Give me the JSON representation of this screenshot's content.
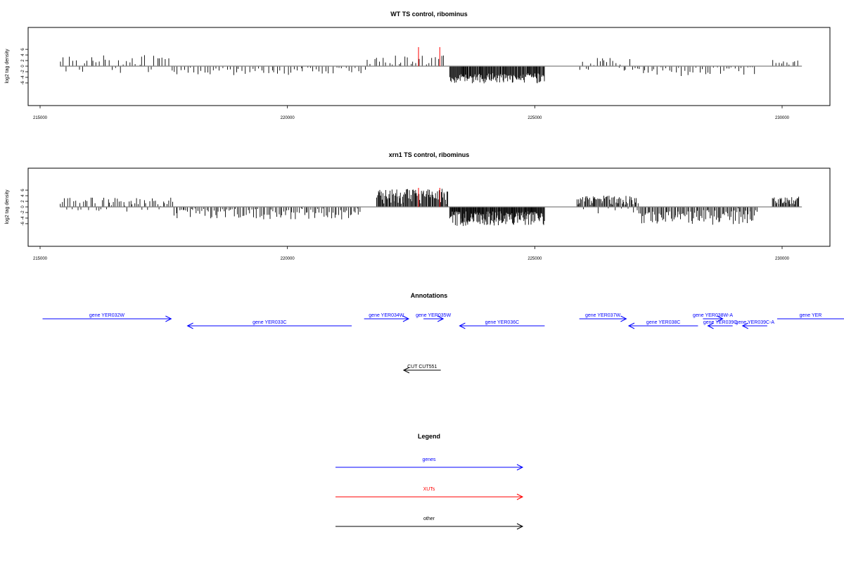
{
  "colors": {
    "gene": "#0000ff",
    "xut": "#ff0000",
    "other": "#000000",
    "baseline": "#808080"
  },
  "chart_data": [
    {
      "type": "bar",
      "title": "WT TS control, ribominus",
      "ylabel": "log2 tag density",
      "xlim": [
        214700,
        230800
      ],
      "ylim": [
        -7,
        7
      ],
      "xticks": [
        {
          "v": 215000,
          "label": "215000"
        },
        {
          "v": 220000,
          "label": "220000"
        },
        {
          "v": 225000,
          "label": "225000"
        },
        {
          "v": 230000,
          "label": "230000"
        }
      ],
      "yticks": [
        {
          "v": 6,
          "label": "6"
        },
        {
          "v": 4,
          "label": "4"
        },
        {
          "v": 2,
          "label": "2"
        },
        {
          "v": 0,
          "label": "0"
        },
        {
          "v": -2,
          "label": "-2"
        },
        {
          "v": -4,
          "label": "-4"
        },
        {
          "v": -6,
          "label": "-6"
        }
      ],
      "baseline_x": [
        215400,
        230400
      ],
      "highlights": [
        {
          "x": 222650,
          "y": 6.8
        },
        {
          "x": 223080,
          "y": 6.8
        }
      ],
      "series": [
        {
          "segments": [
            {
              "x0": 215400,
              "x1": 217700,
              "n": 38,
              "lo": 0.3,
              "hi": 4.0,
              "neg": 0.2,
              "seed": 11
            },
            {
              "x0": 217700,
              "x1": 221600,
              "n": 60,
              "lo": -3.4,
              "hi": -0.4,
              "neg": 0.0,
              "seed": 12
            },
            {
              "x0": 221600,
              "x1": 223200,
              "n": 26,
              "lo": 0.5,
              "hi": 3.8,
              "neg": 0.05,
              "seed": 13
            },
            {
              "x0": 223280,
              "x1": 225200,
              "n": 140,
              "lo": -6.2,
              "hi": -2.5,
              "neg": 0.0,
              "seed": 14
            },
            {
              "x0": 225900,
              "x1": 227100,
              "n": 22,
              "lo": 0.3,
              "hi": 3.0,
              "neg": 0.25,
              "seed": 15
            },
            {
              "x0": 227100,
              "x1": 229500,
              "n": 40,
              "lo": -3.6,
              "hi": -0.3,
              "neg": 0.0,
              "seed": 16
            },
            {
              "x0": 229800,
              "x1": 230350,
              "n": 10,
              "lo": 0.3,
              "hi": 2.5,
              "neg": 0.0,
              "seed": 17
            }
          ]
        }
      ]
    },
    {
      "type": "bar",
      "title": "xrn1 TS control, ribominus",
      "ylabel": "log2 tag density",
      "xlim": [
        214700,
        230800
      ],
      "ylim": [
        -7,
        7
      ],
      "xticks": [
        {
          "v": 215000,
          "label": "215000"
        },
        {
          "v": 220000,
          "label": "220000"
        },
        {
          "v": 225000,
          "label": "225000"
        },
        {
          "v": 230000,
          "label": "230000"
        }
      ],
      "yticks": [
        {
          "v": 6,
          "label": "6"
        },
        {
          "v": 4,
          "label": "4"
        },
        {
          "v": 2,
          "label": "2"
        },
        {
          "v": 0,
          "label": "0"
        },
        {
          "v": -2,
          "label": "-2"
        },
        {
          "v": -4,
          "label": "-4"
        },
        {
          "v": -6,
          "label": "-6"
        }
      ],
      "baseline_x": [
        215400,
        230400
      ],
      "highlights": [
        {
          "x": 222650,
          "y": 6.8
        },
        {
          "x": 223080,
          "y": 6.8
        }
      ],
      "series": [
        {
          "segments": [
            {
              "x0": 215400,
              "x1": 217700,
              "n": 60,
              "lo": 0.3,
              "hi": 3.4,
              "neg": 0.15,
              "seed": 21
            },
            {
              "x0": 217700,
              "x1": 221500,
              "n": 110,
              "lo": -4.5,
              "hi": -0.5,
              "neg": 0.0,
              "seed": 22
            },
            {
              "x0": 221800,
              "x1": 223250,
              "n": 90,
              "lo": 0.8,
              "hi": 6.5,
              "neg": 0.0,
              "seed": 23
            },
            {
              "x0": 223280,
              "x1": 225200,
              "n": 170,
              "lo": -7.0,
              "hi": -1.5,
              "neg": 0.0,
              "seed": 24
            },
            {
              "x0": 225850,
              "x1": 227100,
              "n": 70,
              "lo": 0.6,
              "hi": 4.0,
              "neg": 0.1,
              "seed": 25
            },
            {
              "x0": 227100,
              "x1": 229500,
              "n": 100,
              "lo": -6.5,
              "hi": -0.5,
              "neg": 0.0,
              "seed": 26
            },
            {
              "x0": 229800,
              "x1": 230350,
              "n": 30,
              "lo": 0.5,
              "hi": 3.9,
              "neg": 0.0,
              "seed": 27
            }
          ]
        }
      ]
    }
  ],
  "annotations": {
    "title": "Annotations",
    "genes": [
      {
        "label": "gene YER032W",
        "x0": 215050,
        "x1": 217650,
        "dir": "right",
        "row": 0
      },
      {
        "label": "gene YER033C",
        "x0": 217980,
        "x1": 221300,
        "dir": "left",
        "row": 1
      },
      {
        "label": "gene YER034W",
        "x0": 221550,
        "x1": 222450,
        "dir": "right",
        "row": 0
      },
      {
        "label": "gene YER035W",
        "x0": 222750,
        "x1": 223150,
        "dir": "right",
        "row": 0
      },
      {
        "label": "gene YER036C",
        "x0": 223480,
        "x1": 225200,
        "dir": "left",
        "row": 1
      },
      {
        "label": "gene YER037W",
        "x0": 225900,
        "x1": 226850,
        "dir": "right",
        "row": 0
      },
      {
        "label": "gene YER038C",
        "x0": 226900,
        "x1": 228300,
        "dir": "left",
        "row": 1
      },
      {
        "label": "gene YER038W-A",
        "x0": 228400,
        "x1": 228800,
        "dir": "right",
        "row": 0
      },
      {
        "label": "gene YER039C",
        "x0": 228500,
        "x1": 229000,
        "dir": "left",
        "row": 1
      },
      {
        "label": "gene YER039C-A",
        "x0": 229200,
        "x1": 229700,
        "dir": "left",
        "row": 1
      },
      {
        "label": "gene YER",
        "x0": 229900,
        "x1": 231600,
        "dir": "right",
        "row": 0
      }
    ],
    "others": [
      {
        "label": "CUT CUT551",
        "x0": 222350,
        "x1": 223100,
        "dir": "left"
      }
    ]
  },
  "legend": {
    "title": "Legend",
    "items": [
      {
        "label": "genes",
        "color": "#0000ff"
      },
      {
        "label": "XUTs",
        "color": "#ff0000"
      },
      {
        "label": "other",
        "color": "#000000"
      }
    ]
  }
}
